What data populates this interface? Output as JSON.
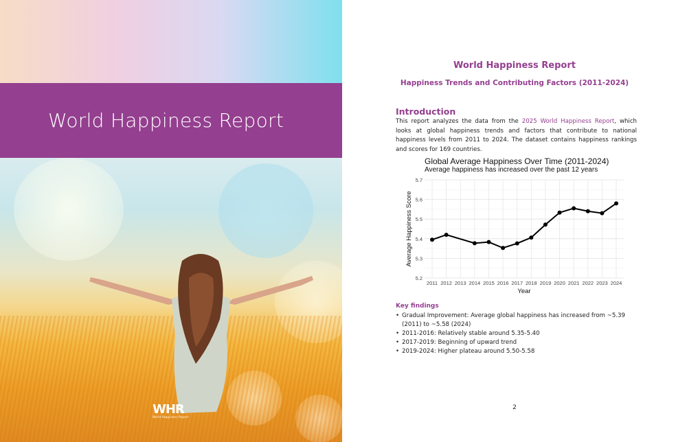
{
  "cover": {
    "title": "World Happiness Report",
    "logo_text": "WHR",
    "logo_subtext": "World Happiness Report",
    "band_color": "#943f8f"
  },
  "page": {
    "title": "World Happiness Report",
    "subtitle": "Happiness Trends and Contributing Factors (2011-2024)",
    "intro_heading": "Introduction",
    "intro_before_link": "This report analyzes the data from the ",
    "intro_link": "2025 World Happiness Report",
    "intro_after_link": ", which looks at global happiness trends and factors that contribute to national happiness levels from 2011 to 2024. The dataset contains happiness rankings and scores for 169 countries.",
    "key_findings_heading": "Key findings",
    "key_findings": [
      "Gradual Improvement: Average global happiness has increased from ~5.39 (2011) to ~5.58 (2024)",
      "2011-2016: Relatively stable around 5.35-5.40",
      "2017-2019: Beginning of upward trend",
      "2019-2024: Higher plateau around 5.50-5.58"
    ],
    "page_number": "2",
    "accent_color": "#943f8f"
  },
  "chart_data": {
    "type": "line",
    "title": "Global Average Happiness Over Time (2011-2024)",
    "subtitle": "Average happiness has increased over the past 12 years",
    "xlabel": "Year",
    "ylabel": "Average Happiness Score",
    "x": [
      2011,
      2012,
      2014,
      2015,
      2016,
      2017,
      2018,
      2019,
      2020,
      2021,
      2022,
      2023,
      2024
    ],
    "x_ticks": [
      "2011",
      "2012",
      "2013",
      "2014",
      "2015",
      "2016",
      "2017",
      "2018",
      "2019",
      "2020",
      "2021",
      "2022",
      "2023",
      "2024"
    ],
    "y": [
      5.395,
      5.42,
      5.377,
      5.383,
      5.353,
      5.376,
      5.406,
      5.472,
      5.533,
      5.555,
      5.54,
      5.53,
      5.58
    ],
    "y_ticks": [
      "5.2",
      "5.3",
      "5.4",
      "5.5",
      "5.6",
      "5.7"
    ],
    "ylim": [
      5.2,
      5.7
    ],
    "xlim": [
      2011,
      2024
    ],
    "grid": true,
    "line_color": "#000000"
  }
}
